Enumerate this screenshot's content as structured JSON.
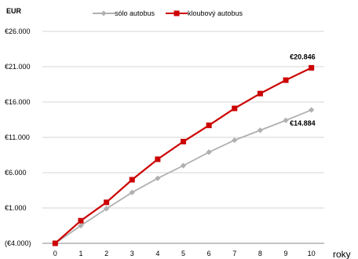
{
  "chart_data": {
    "type": "line",
    "ylabel": "EUR",
    "xlabel": "roky",
    "x": [
      0,
      1,
      2,
      3,
      4,
      5,
      6,
      7,
      8,
      9,
      10
    ],
    "ylim": [
      -4000,
      26000
    ],
    "yticks": [
      -4000,
      1000,
      6000,
      11000,
      16000,
      21000,
      26000
    ],
    "ytick_labels": [
      "(€4.000)",
      "€1.000",
      "€6.000",
      "€11.000",
      "€16.000",
      "€21.000",
      "€26.000"
    ],
    "grid": true,
    "legend_position": "top-center",
    "series": [
      {
        "name": "sólo autobus",
        "color": "#b0b0b0",
        "marker": "diamond",
        "values": [
          -4000,
          -1500,
          900,
          3200,
          5200,
          7000,
          8900,
          10600,
          12000,
          13400,
          14884
        ],
        "end_label": "€14.884"
      },
      {
        "name": "kloubový autobus",
        "color": "#cc0000",
        "marker": "square",
        "values": [
          -4000,
          -800,
          1800,
          5000,
          7900,
          10400,
          12700,
          15100,
          17200,
          19100,
          20846
        ],
        "end_label": "€20.846"
      }
    ]
  }
}
